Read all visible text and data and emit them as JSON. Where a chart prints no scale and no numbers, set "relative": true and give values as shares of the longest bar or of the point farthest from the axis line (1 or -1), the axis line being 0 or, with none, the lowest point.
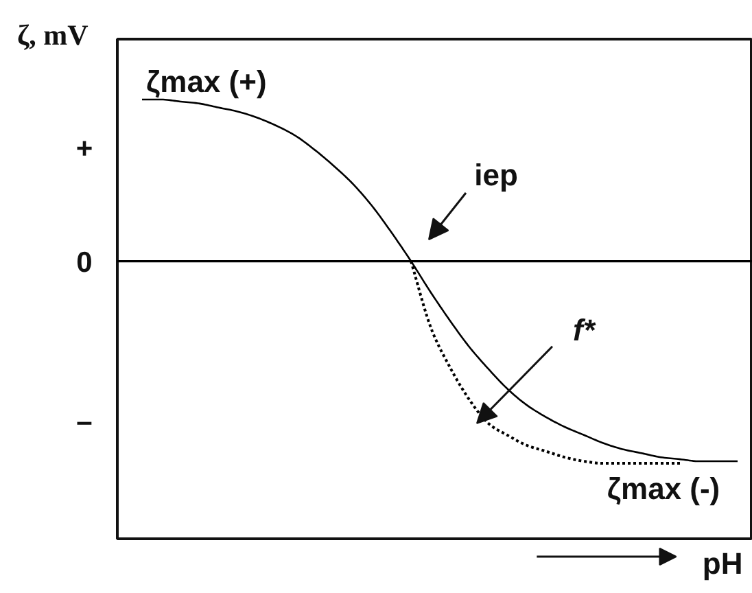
{
  "chart_data": {
    "type": "line",
    "relative": true,
    "ylabel": "ζ, mV",
    "xlabel": "pH",
    "categories": [
      null,
      null,
      null,
      null,
      null,
      null,
      null,
      null,
      null,
      null,
      null,
      null,
      null,
      null,
      null,
      null,
      null,
      null,
      null,
      null,
      null,
      null,
      null,
      null,
      null,
      null,
      null,
      null,
      null,
      null,
      null,
      null
    ],
    "series": [
      {
        "color": "#000000",
        "line_style": "solid",
        "values": [
          0.8,
          0.8,
          0.79,
          0.78,
          0.76,
          0.74,
          0.71,
          0.67,
          0.62,
          0.55,
          0.47,
          0.38,
          0.27,
          0.14,
          0,
          -0.15,
          -0.29,
          -0.42,
          -0.53,
          -0.63,
          -0.71,
          -0.77,
          -0.82,
          -0.86,
          -0.9,
          -0.93,
          -0.95,
          -0.97,
          -0.98,
          -0.99,
          -0.99,
          -0.99
        ]
      },
      {
        "name": "f*",
        "color": "#000000",
        "line_style": "dotted",
        "values": [
          null,
          null,
          null,
          null,
          null,
          null,
          null,
          null,
          null,
          null,
          null,
          null,
          null,
          null,
          0,
          -0.32,
          -0.52,
          -0.68,
          -0.8,
          -0.86,
          -0.91,
          -0.94,
          -0.97,
          -0.99,
          -1.0,
          -1.0,
          -1.0,
          -1.0,
          -1.0,
          null,
          null,
          null
        ]
      }
    ],
    "ref_lines": [
      {
        "axis": "y",
        "value": 0,
        "color": "#000000"
      }
    ],
    "annotations": [
      "+",
      "0",
      "–",
      {
        "text": "ζmax (+)",
        "y": 0.8
      },
      "iep",
      {
        "text": "ζmax (-)",
        "y": -0.99
      }
    ]
  }
}
